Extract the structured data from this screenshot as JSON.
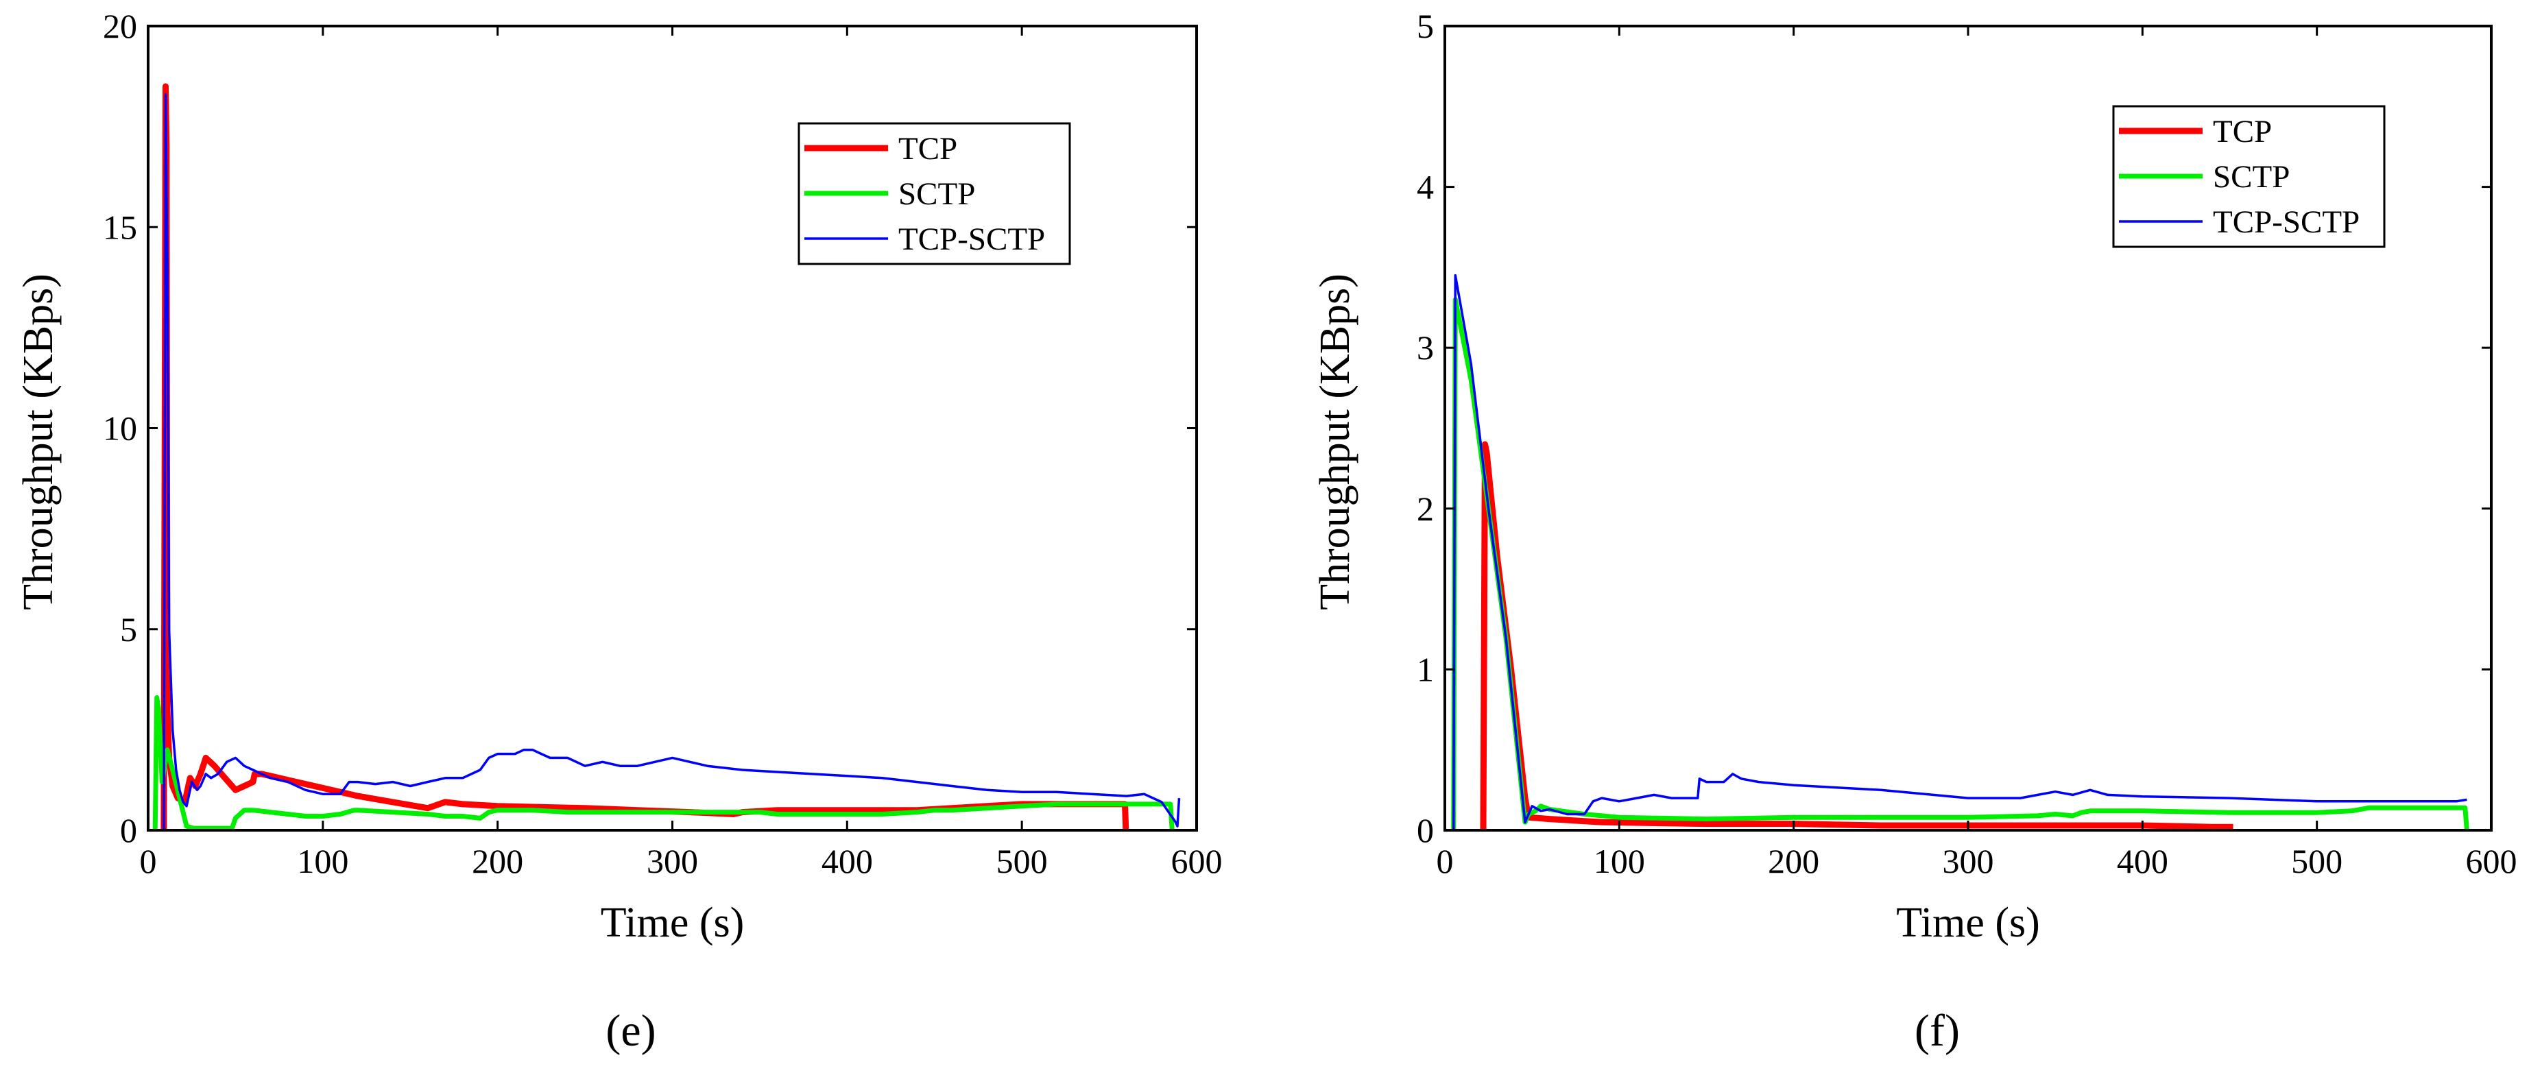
{
  "figure": {
    "panel_labels": [
      "(e)",
      "(f)"
    ]
  },
  "chart_data": [
    {
      "type": "line",
      "panel": "(e)",
      "xlabel": "Time (s)",
      "ylabel": "Throughput (KBps)",
      "xlim": [
        0,
        600
      ],
      "ylim": [
        0,
        20
      ],
      "xticks": [
        0,
        100,
        200,
        300,
        400,
        500,
        600
      ],
      "yticks": [
        0,
        5,
        10,
        15,
        20
      ],
      "legend": {
        "location": "top-right",
        "entries": [
          "TCP",
          "SCTP",
          "TCP-SCTP"
        ]
      },
      "grid": false,
      "series": [
        {
          "name": "TCP",
          "color": "#ff0000",
          "x": [
            9,
            10,
            10.5,
            11,
            12,
            14,
            17,
            21,
            24,
            27,
            30,
            33,
            38,
            44,
            50,
            55,
            60,
            61,
            62,
            65,
            70,
            80,
            100,
            120,
            140,
            160,
            170,
            180,
            200,
            220,
            250,
            280,
            310,
            335,
            340,
            360,
            380,
            400,
            420,
            440,
            460,
            480,
            500,
            520,
            540,
            559,
            559.5
          ],
          "y": [
            0,
            18.5,
            17,
            3,
            1.8,
            1.1,
            0.8,
            0.7,
            1.3,
            1.1,
            1.4,
            1.8,
            1.6,
            1.3,
            1.0,
            1.1,
            1.2,
            1.4,
            1.4,
            1.4,
            1.35,
            1.25,
            1.05,
            0.85,
            0.7,
            0.55,
            0.7,
            0.65,
            0.6,
            0.58,
            0.55,
            0.5,
            0.45,
            0.4,
            0.45,
            0.5,
            0.5,
            0.5,
            0.5,
            0.5,
            0.55,
            0.6,
            0.65,
            0.65,
            0.65,
            0.65,
            0
          ]
        },
        {
          "name": "SCTP",
          "color": "#00ee00",
          "x": [
            4,
            5,
            6,
            8,
            11,
            14,
            18,
            22,
            26,
            30,
            40,
            48,
            50,
            55,
            60,
            70,
            80,
            90,
            100,
            110,
            118,
            120,
            140,
            160,
            170,
            180,
            190,
            195,
            200,
            220,
            240,
            260,
            280,
            300,
            320,
            340,
            350,
            360,
            380,
            400,
            420,
            440,
            450,
            460,
            480,
            500,
            520,
            540,
            560,
            580,
            585,
            586
          ],
          "y": [
            0,
            3.3,
            3.0,
            1.2,
            2.0,
            1.5,
            0.8,
            0.1,
            0.05,
            0.05,
            0.05,
            0.05,
            0.3,
            0.5,
            0.5,
            0.45,
            0.4,
            0.35,
            0.35,
            0.4,
            0.5,
            0.5,
            0.45,
            0.4,
            0.35,
            0.35,
            0.3,
            0.45,
            0.5,
            0.5,
            0.45,
            0.45,
            0.45,
            0.45,
            0.45,
            0.45,
            0.45,
            0.4,
            0.4,
            0.4,
            0.4,
            0.45,
            0.5,
            0.5,
            0.55,
            0.6,
            0.65,
            0.65,
            0.65,
            0.65,
            0.65,
            0
          ]
        },
        {
          "name": "TCP-SCTP",
          "color": "#0000ff",
          "x": [
            9,
            10,
            11,
            12,
            14,
            16,
            18,
            20,
            22,
            25,
            28,
            30,
            33,
            36,
            40,
            45,
            50,
            55,
            60,
            65,
            70,
            80,
            90,
            100,
            110,
            115,
            118,
            120,
            130,
            140,
            150,
            160,
            170,
            180,
            190,
            195,
            200,
            210,
            215,
            220,
            225,
            230,
            240,
            250,
            260,
            270,
            280,
            290,
            300,
            310,
            320,
            340,
            360,
            380,
            400,
            420,
            440,
            460,
            480,
            500,
            520,
            540,
            560,
            570,
            580,
            588,
            589,
            590
          ],
          "y": [
            0,
            18.3,
            14,
            5,
            2.5,
            1.5,
            1.0,
            0.7,
            0.6,
            1.2,
            1.0,
            1.1,
            1.4,
            1.3,
            1.4,
            1.7,
            1.8,
            1.6,
            1.5,
            1.4,
            1.3,
            1.2,
            1.0,
            0.9,
            0.9,
            1.2,
            1.2,
            1.2,
            1.15,
            1.2,
            1.1,
            1.2,
            1.3,
            1.3,
            1.5,
            1.8,
            1.9,
            1.9,
            2.0,
            2.0,
            1.9,
            1.8,
            1.8,
            1.6,
            1.7,
            1.6,
            1.6,
            1.7,
            1.8,
            1.7,
            1.6,
            1.5,
            1.45,
            1.4,
            1.35,
            1.3,
            1.2,
            1.1,
            1.0,
            0.95,
            0.95,
            0.9,
            0.85,
            0.9,
            0.7,
            0.2,
            0.1,
            0.8
          ]
        }
      ]
    },
    {
      "type": "line",
      "panel": "(f)",
      "xlabel": "Time (s)",
      "ylabel": "Throughput (KBps)",
      "xlim": [
        0,
        600
      ],
      "ylim": [
        0,
        5
      ],
      "xticks": [
        0,
        100,
        200,
        300,
        400,
        500,
        600
      ],
      "yticks": [
        0,
        1,
        2,
        3,
        4,
        5
      ],
      "legend": {
        "location": "top-right",
        "entries": [
          "TCP",
          "SCTP",
          "TCP-SCTP"
        ]
      },
      "grid": false,
      "series": [
        {
          "name": "TCP",
          "color": "#ff0000",
          "x": [
            22,
            23,
            24,
            30,
            38,
            46,
            48,
            60,
            90,
            150,
            200,
            250,
            300,
            350,
            400,
            440,
            452
          ],
          "y": [
            0,
            2.4,
            2.35,
            1.7,
            1.0,
            0.2,
            0.08,
            0.07,
            0.05,
            0.04,
            0.04,
            0.03,
            0.03,
            0.03,
            0.03,
            0.02,
            0.02
          ]
        },
        {
          "name": "SCTP",
          "color": "#00ee00",
          "x": [
            5,
            6,
            15,
            25,
            35,
            46,
            48,
            52,
            55,
            60,
            80,
            100,
            150,
            200,
            250,
            300,
            340,
            350,
            360,
            365,
            370,
            380,
            400,
            450,
            500,
            520,
            530,
            540,
            560,
            580,
            585,
            586
          ],
          "y": [
            0,
            3.3,
            2.8,
            2.0,
            1.2,
            0.05,
            0.1,
            0.12,
            0.15,
            0.13,
            0.1,
            0.08,
            0.07,
            0.08,
            0.08,
            0.08,
            0.09,
            0.1,
            0.09,
            0.11,
            0.12,
            0.12,
            0.12,
            0.11,
            0.11,
            0.12,
            0.14,
            0.14,
            0.14,
            0.14,
            0.14,
            0
          ]
        },
        {
          "name": "TCP-SCTP",
          "color": "#0000ff",
          "x": [
            5,
            6,
            15,
            25,
            35,
            46,
            48,
            50,
            55,
            60,
            70,
            80,
            85,
            90,
            100,
            110,
            120,
            130,
            140,
            145,
            146,
            150,
            160,
            165,
            170,
            180,
            200,
            250,
            300,
            330,
            340,
            350,
            360,
            370,
            380,
            400,
            450,
            500,
            520,
            550,
            580,
            586
          ],
          "y": [
            0,
            3.45,
            2.9,
            2.0,
            1.2,
            0.05,
            0.1,
            0.15,
            0.12,
            0.13,
            0.1,
            0.1,
            0.18,
            0.2,
            0.18,
            0.2,
            0.22,
            0.2,
            0.2,
            0.2,
            0.32,
            0.3,
            0.3,
            0.35,
            0.32,
            0.3,
            0.28,
            0.25,
            0.2,
            0.2,
            0.22,
            0.24,
            0.22,
            0.25,
            0.22,
            0.21,
            0.2,
            0.18,
            0.18,
            0.18,
            0.18,
            0.19
          ]
        }
      ]
    }
  ]
}
